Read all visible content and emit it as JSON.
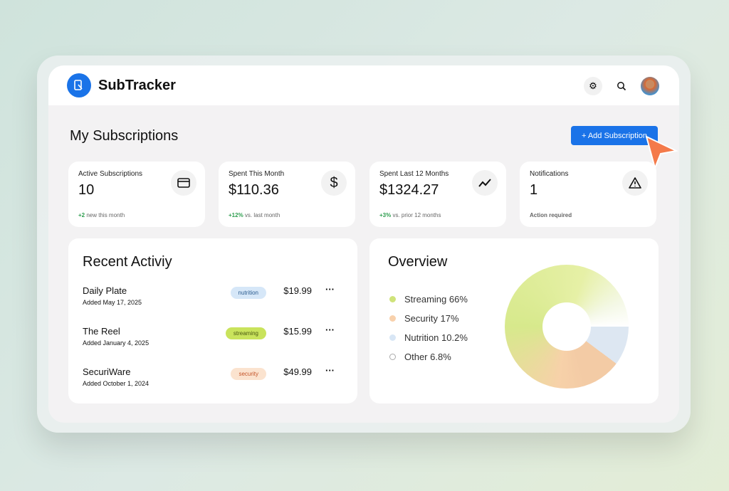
{
  "app": {
    "name": "SubTracker"
  },
  "header": {
    "icons": [
      "gear-icon",
      "search-icon",
      "avatar"
    ]
  },
  "page": {
    "title": "My Subscriptions",
    "add_button": "+ Add Subscription"
  },
  "stats": [
    {
      "label": "Active Subscriptions",
      "value": "10",
      "delta": "+2",
      "note": "new this month",
      "icon": "credit-card-icon"
    },
    {
      "label": "Spent This Month",
      "value": "$110.36",
      "delta": "+12%",
      "note": "vs. last month",
      "icon": "dollar-icon"
    },
    {
      "label": "Spent Last 12 Months",
      "value": "$1324.27",
      "delta": "+3%",
      "note": "vs. prior 12 months",
      "icon": "trend-icon"
    },
    {
      "label": "Notifications",
      "value": "1",
      "note": "Action required",
      "icon": "warning-icon"
    }
  ],
  "recent": {
    "title": "Recent Activiy",
    "items": [
      {
        "name": "Daily Plate",
        "date": "Added May 17, 2025",
        "tag": "nutrition",
        "price": "$19.99"
      },
      {
        "name": "The Reel",
        "date": "Added January 4, 2025",
        "tag": "streaming",
        "price": "$15.99"
      },
      {
        "name": "SecuriWare",
        "date": "Added October 1, 2024",
        "tag": "security",
        "price": "$49.99"
      }
    ]
  },
  "overview": {
    "title": "Overview",
    "legend": [
      "Streaming 66%",
      "Security 17%",
      "Nutrition 10.2%",
      "Other 6.8%"
    ]
  },
  "chart_data": {
    "type": "pie",
    "categories": [
      "Streaming",
      "Security",
      "Nutrition",
      "Other"
    ],
    "values": [
      66,
      17,
      10.2,
      6.8
    ],
    "colors": [
      "#d7e98c",
      "#f7d1a9",
      "#dde7f2",
      "#ffffff"
    ],
    "donut": true
  },
  "colors": {
    "accent": "#1a73e8",
    "positive": "#2e9e4f",
    "alert": "#d2552a"
  }
}
